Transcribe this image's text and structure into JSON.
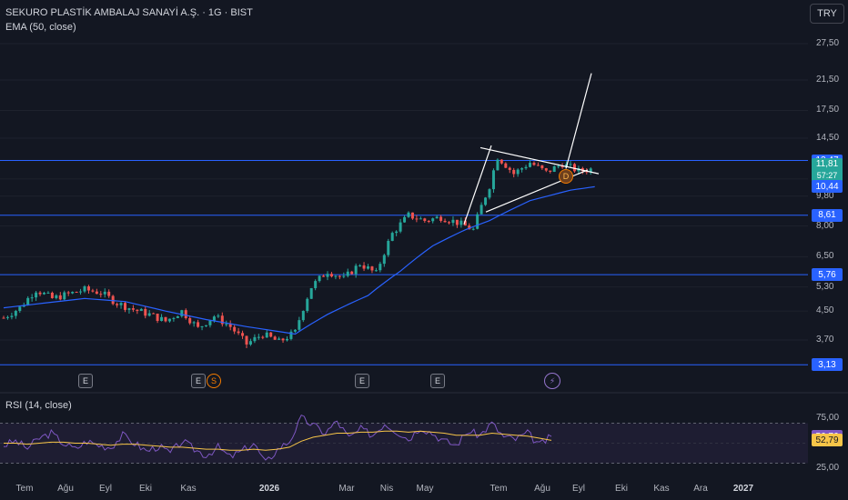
{
  "header": {
    "title": "SEKURO PLASTİK AMBALAJ SANAYİ A.Ş. · 1G · BIST",
    "ema_label": "EMA (50, close)",
    "rsi_label": "RSI (14, close)",
    "currency": "TRY"
  },
  "events": {
    "earnings": "E",
    "split": "S",
    "dividend_marker": "D"
  },
  "colors": {
    "background": "#131722",
    "up": "#26a69a",
    "down": "#ef5350",
    "ema": "#2962ff",
    "rsi": "#7e57c2",
    "rsi_ma": "#f7c548",
    "hline": "#2962ff",
    "trendline": "#ffffff"
  },
  "chart_data": [
    {
      "type": "candlestick",
      "title": "SEKURO PLASTİK AMBALAJ SANAYİ A.Ş. · 1G · BIST",
      "y_scale": "log",
      "y_ticks": [
        "27,50",
        "21,50",
        "17,50",
        "14,50",
        "11,00",
        "9,80",
        "8,00",
        "6,50",
        "5,30",
        "4,50",
        "3,70"
      ],
      "y_tick_values": [
        27.5,
        21.5,
        17.5,
        14.5,
        11.0,
        9.8,
        8.0,
        6.5,
        5.3,
        4.5,
        3.7
      ],
      "x_ticks": [
        "Tem",
        "Ağu",
        "Eyl",
        "Eki",
        "Kas",
        "2026",
        "Mar",
        "Nis",
        "May",
        "Tem",
        "Ağu",
        "Eyl",
        "Eki",
        "Kas",
        "Ara",
        "2027"
      ],
      "x_tick_positions_hint": "monthly",
      "horizontal_levels": [
        {
          "label": "12,47",
          "value": 12.47
        },
        {
          "label": "8,61",
          "value": 8.61
        },
        {
          "label": "5,76",
          "value": 5.76
        },
        {
          "label": "3,13",
          "value": 3.13
        }
      ],
      "last_price": {
        "label": "11,81",
        "value": 11.81,
        "countdown": "57:27"
      },
      "ema_value": {
        "label": "10,44",
        "value": 10.44
      },
      "series": [
        {
          "name": "EMA (50, close)",
          "type": "line"
        }
      ],
      "price_path": [
        {
          "t": 0,
          "c": 4.3
        },
        {
          "t": 4,
          "c": 4.6
        },
        {
          "t": 8,
          "c": 5.2
        },
        {
          "t": 12,
          "c": 4.9
        },
        {
          "t": 16,
          "c": 5.05
        },
        {
          "t": 20,
          "c": 5.2
        },
        {
          "t": 24,
          "c": 5.1
        },
        {
          "t": 28,
          "c": 4.75
        },
        {
          "t": 32,
          "c": 4.55
        },
        {
          "t": 36,
          "c": 4.4
        },
        {
          "t": 40,
          "c": 4.2
        },
        {
          "t": 44,
          "c": 4.5
        },
        {
          "t": 48,
          "c": 4.0
        },
        {
          "t": 52,
          "c": 4.35
        },
        {
          "t": 56,
          "c": 4.05
        },
        {
          "t": 60,
          "c": 3.6
        },
        {
          "t": 64,
          "c": 3.85
        },
        {
          "t": 68,
          "c": 3.65
        },
        {
          "t": 72,
          "c": 3.9
        },
        {
          "t": 76,
          "c": 5.3
        },
        {
          "t": 80,
          "c": 5.9
        },
        {
          "t": 84,
          "c": 5.6
        },
        {
          "t": 88,
          "c": 6.2
        },
        {
          "t": 92,
          "c": 5.8
        },
        {
          "t": 96,
          "c": 7.6
        },
        {
          "t": 100,
          "c": 8.6
        },
        {
          "t": 104,
          "c": 8.3
        },
        {
          "t": 108,
          "c": 8.5
        },
        {
          "t": 112,
          "c": 8.2
        },
        {
          "t": 116,
          "c": 7.8
        },
        {
          "t": 120,
          "c": 10.5
        },
        {
          "t": 122,
          "c": 12.8
        },
        {
          "t": 126,
          "c": 11.4
        },
        {
          "t": 130,
          "c": 12.3
        },
        {
          "t": 134,
          "c": 11.5
        },
        {
          "t": 138,
          "c": 12.2
        },
        {
          "t": 142,
          "c": 11.6
        },
        {
          "t": 146,
          "c": 11.81
        }
      ],
      "ema_path": [
        {
          "t": 0,
          "c": 4.6
        },
        {
          "t": 10,
          "c": 4.75
        },
        {
          "t": 20,
          "c": 4.9
        },
        {
          "t": 30,
          "c": 4.8
        },
        {
          "t": 40,
          "c": 4.5
        },
        {
          "t": 50,
          "c": 4.25
        },
        {
          "t": 60,
          "c": 4.05
        },
        {
          "t": 72,
          "c": 3.85
        },
        {
          "t": 80,
          "c": 4.4
        },
        {
          "t": 90,
          "c": 5.0
        },
        {
          "t": 98,
          "c": 5.9
        },
        {
          "t": 106,
          "c": 7.0
        },
        {
          "t": 114,
          "c": 7.8
        },
        {
          "t": 120,
          "c": 8.3
        },
        {
          "t": 130,
          "c": 9.5
        },
        {
          "t": 140,
          "c": 10.2
        },
        {
          "t": 146,
          "c": 10.44
        }
      ]
    },
    {
      "type": "line",
      "title": "RSI (14, close)",
      "y_ticks": [
        "75,00",
        "25,00"
      ],
      "y_tick_values": [
        75,
        25
      ],
      "band": [
        30,
        70
      ],
      "last_values": [
        {
          "label": "56,76",
          "value": 56.76,
          "series": "RSI"
        },
        {
          "label": "52,79",
          "value": 52.79,
          "series": "RSI MA"
        }
      ],
      "rsi_path": [
        48,
        52,
        45,
        55,
        60,
        50,
        44,
        52,
        48,
        46,
        58,
        50,
        42,
        47,
        40,
        52,
        44,
        38,
        46,
        36,
        42,
        50,
        30,
        44,
        52,
        75,
        68,
        60,
        72,
        55,
        64,
        58,
        70,
        62,
        54,
        66,
        60,
        52,
        48,
        62,
        58,
        70,
        56,
        54,
        60,
        48,
        56.76
      ],
      "rsi_ma_path": [
        50,
        50,
        49,
        50,
        51,
        51,
        50,
        50,
        49,
        48,
        49,
        49,
        48,
        47,
        46,
        46,
        45,
        44,
        44,
        43,
        43,
        44,
        43,
        44,
        46,
        52,
        56,
        58,
        60,
        60,
        61,
        61,
        62,
        62,
        61,
        62,
        61,
        60,
        58,
        58,
        58,
        60,
        59,
        58,
        57,
        55,
        52.79
      ]
    }
  ]
}
